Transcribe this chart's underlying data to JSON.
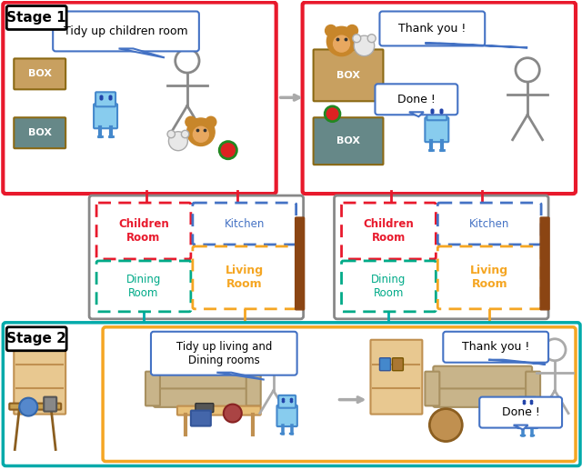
{
  "fig_width": 6.4,
  "fig_height": 5.17,
  "background_color": "#ffffff",
  "stage1_label": "Stage 1",
  "stage2_label": "Stage 2",
  "stage1_box_color": "#e8192c",
  "stage2_box_color": "#f5a623",
  "stage2_box_color2": "#00aaaa",
  "speech_bubble1_text": "Tidy up children room",
  "speech_bubble2_text": "Thank you !",
  "speech_bubble3_text": "Done !",
  "speech_bubble4_text": "Tidy up living and\nDining rooms",
  "speech_bubble5_text": "Thank you !",
  "speech_bubble6_text": "Done !",
  "room_labels": {
    "children_room": "Children\nRoom",
    "kitchen": "Kitchen",
    "dining_room": "Dining\nRoom",
    "living_room": "Living\nRoom"
  },
  "room_colors": {
    "children_room": "#e8192c",
    "kitchen": "#4472c4",
    "dining_room": "#00aa88",
    "living_room": "#f5a623"
  },
  "arrow_color": "#aaaaaa",
  "connector_color_red": "#e8192c",
  "connector_color_teal": "#00aaaa",
  "connector_color_orange": "#f5a623"
}
